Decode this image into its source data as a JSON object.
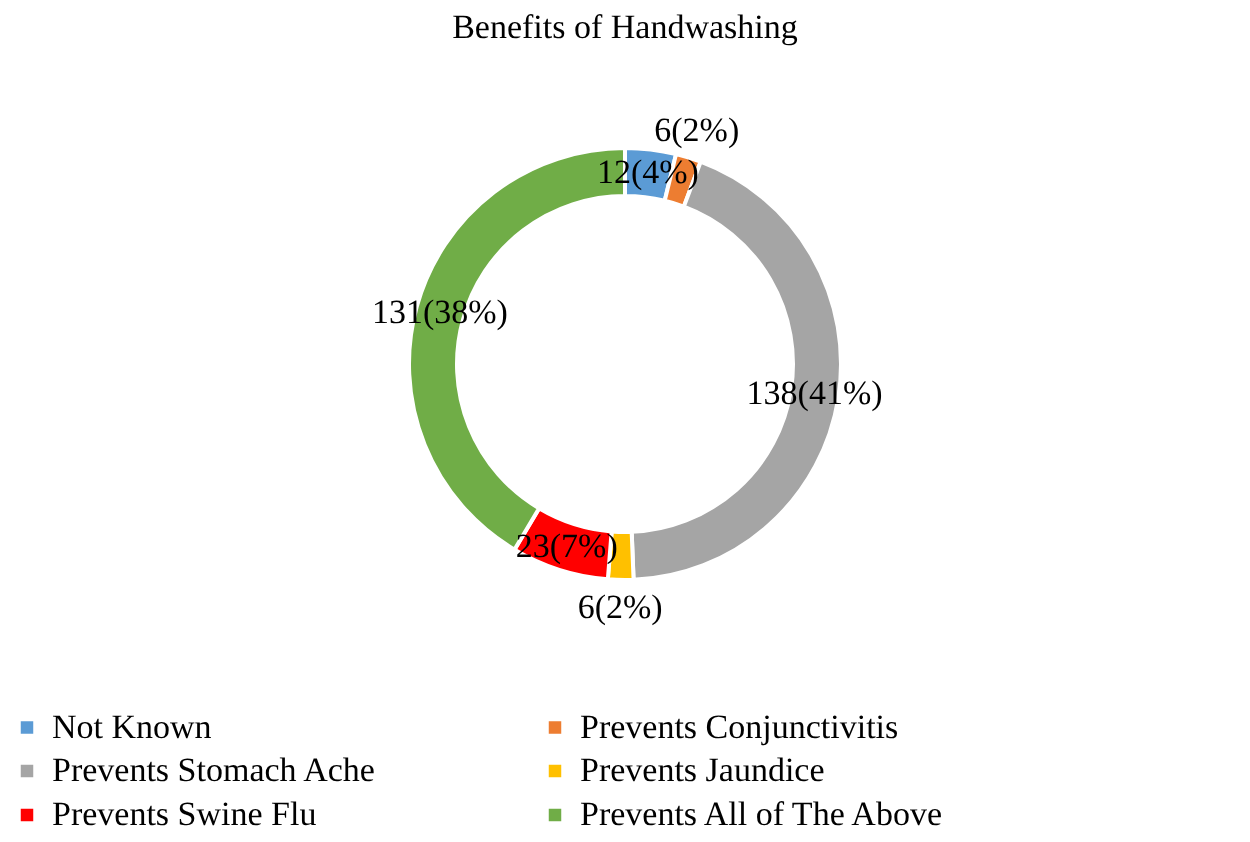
{
  "chart_data": {
    "type": "donut",
    "title": "Benefits of Handwashing",
    "categories": [
      "Not Known",
      "Prevents Conjunctivitis",
      "Prevents Stomach Ache",
      "Prevents Jaundice",
      "Prevents Swine Flu",
      "Prevents All of The Above"
    ],
    "values": [
      12,
      6,
      138,
      6,
      23,
      131
    ],
    "colors": [
      "#5b9bd5",
      "#ed7d31",
      "#a5a5a5",
      "#ffc000",
      "#ff0000",
      "#70ad47"
    ],
    "value_labels": [
      "12(4%)",
      "6(2%)",
      "138(41%)",
      "6(2%)",
      "23(7%)",
      "131(38%)"
    ],
    "legend": "bottom"
  }
}
